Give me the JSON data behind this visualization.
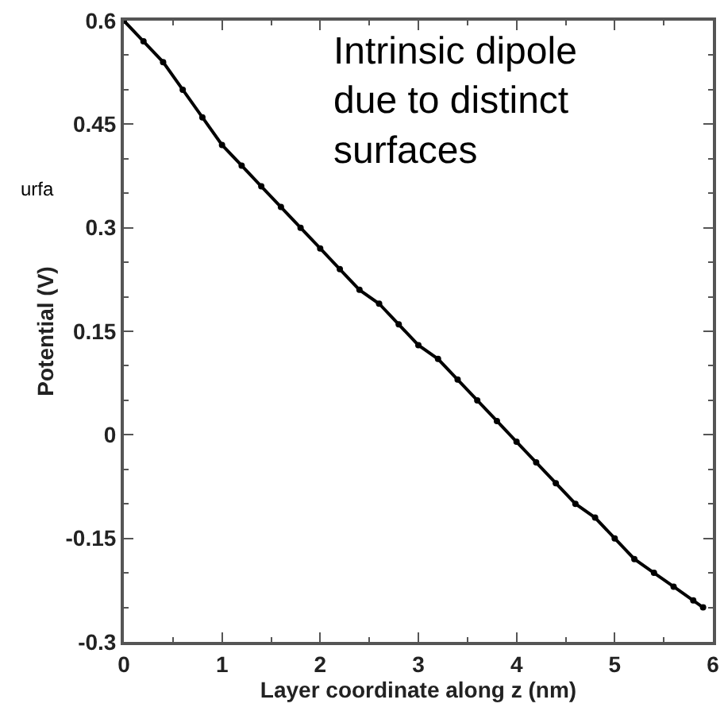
{
  "chart_data": {
    "type": "line",
    "xlabel": "Layer coordinate along z (nm)",
    "ylabel": "Potential (V)",
    "annotations": [
      "Intrinsic dipole\ndue to distinct\nsurfaces",
      "urfa"
    ],
    "x": [
      0,
      0.2,
      0.4,
      0.6,
      0.8,
      1.0,
      1.2,
      1.4,
      1.6,
      1.8,
      2.0,
      2.2,
      2.4,
      2.6,
      2.8,
      3.0,
      3.2,
      3.4,
      3.6,
      3.8,
      4.0,
      4.2,
      4.4,
      4.6,
      4.8,
      5.0,
      5.2,
      5.4,
      5.6,
      5.8,
      5.9
    ],
    "series": [
      {
        "color": "#000000",
        "values": [
          0.6,
          0.57,
          0.54,
          0.5,
          0.46,
          0.42,
          0.39,
          0.36,
          0.33,
          0.3,
          0.27,
          0.24,
          0.21,
          0.19,
          0.16,
          0.13,
          0.11,
          0.08,
          0.05,
          0.02,
          -0.01,
          -0.04,
          -0.07,
          -0.1,
          -0.12,
          -0.15,
          -0.18,
          -0.2,
          -0.22,
          -0.24,
          -0.25
        ]
      }
    ],
    "xlim": [
      0,
      6
    ],
    "xticks": [
      0,
      1,
      2,
      3,
      4,
      5,
      6
    ],
    "ylim": [
      -0.3,
      0.6
    ],
    "yticks": [
      -0.3,
      -0.15,
      0,
      0.15,
      0.3,
      0.45,
      0.6
    ],
    "marker": "circle",
    "line_style": "solid"
  }
}
